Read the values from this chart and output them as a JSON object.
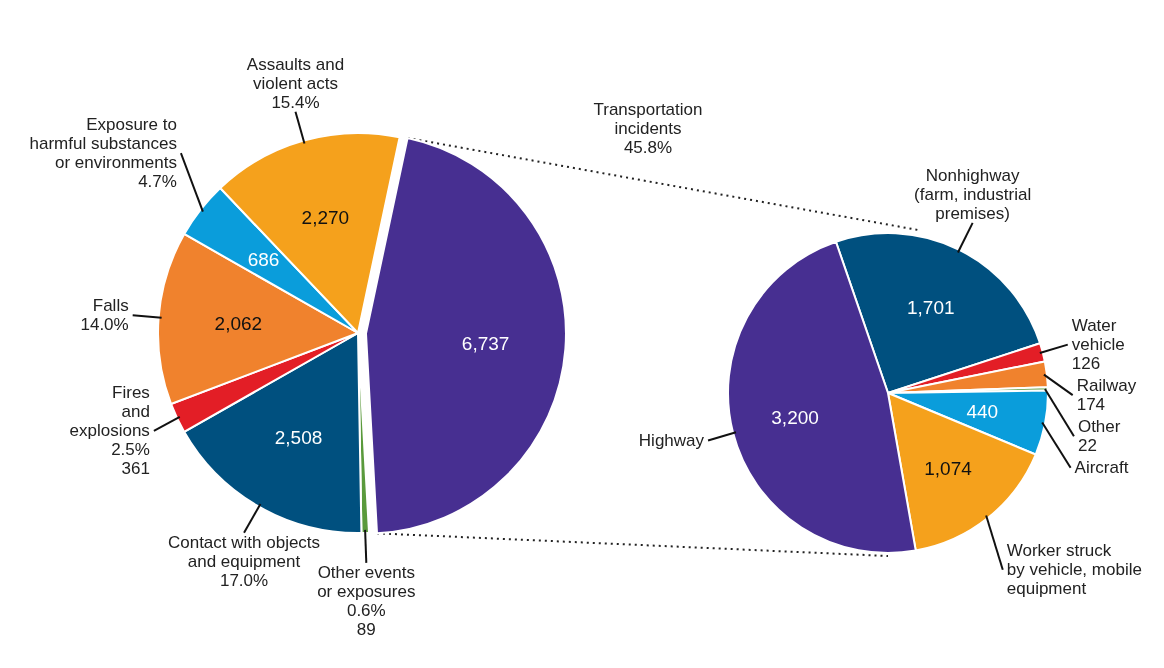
{
  "chart_data": [
    {
      "type": "pie",
      "categories": [
        "Transportation\nincidents\n45.8%",
        "Other events\nor exposures\n0.6%",
        "Contact with objects\nand equipment\n17.0%",
        "Fires\nand\nexplosions\n2.5%",
        "Falls\n14.0%",
        "Exposure to\nharmful substances\nor environments\n4.7%",
        "Assaults and\nviolent acts\n15.4%"
      ],
      "values": [
        6737,
        89,
        2508,
        361,
        2062,
        686,
        2270
      ],
      "colors": [
        "#472f91",
        "#5a9a3c",
        "#00507f",
        "#e31e26",
        "#f0822d",
        "#0a9ddb",
        "#f5a11c"
      ],
      "value_labels": [
        "6,737",
        "89",
        "2,508",
        "361",
        "2,062",
        "686",
        "2,270"
      ]
    },
    {
      "type": "pie",
      "categories": [
        "Nonhighway\n(farm, industrial\npremises)",
        "Water\nvehicle",
        "Railway",
        "Other",
        "Aircraft",
        "Worker struck\nby vehicle, mobile\nequipment",
        "Highway"
      ],
      "values": [
        1701,
        126,
        174,
        22,
        440,
        1074,
        3200
      ],
      "colors": [
        "#00507f",
        "#e31e26",
        "#f0822d",
        "#5a9a3c",
        "#0a9ddb",
        "#f5a11c",
        "#472f91"
      ],
      "value_labels": [
        "1,701",
        "126",
        "174",
        "22",
        "440",
        "1,074",
        "3,200"
      ]
    }
  ]
}
